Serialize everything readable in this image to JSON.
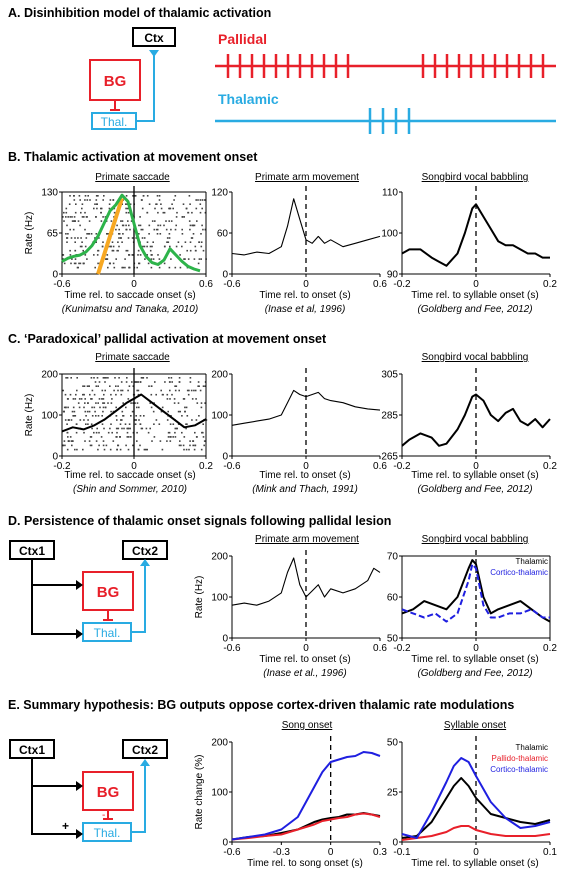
{
  "sections": {
    "A": {
      "heading": "A. Disinhibition model of thalamic activation",
      "pallidal_label": "Pallidal",
      "thalamic_label": "Thalamic"
    },
    "B": {
      "heading": "B. Thalamic activation at movement onset"
    },
    "C": {
      "heading": "C. ‘Paradoxical’ pallidal activation at movement onset"
    },
    "D": {
      "heading": "D. Persistence of thalamic onset signals following pallidal lesion"
    },
    "E": {
      "heading": "E. Summary hypothesis: BG outputs oppose cortex-driven thalamic rate modulations"
    }
  },
  "diagrams": {
    "A": {
      "ctx": "Ctx",
      "bg": "BG",
      "thal": "Thal."
    },
    "D": {
      "ctx1": "Ctx1",
      "ctx2": "Ctx2",
      "bg": "BG",
      "thal": "Thal."
    },
    "E": {
      "ctx1": "Ctx1",
      "ctx2": "Ctx2",
      "bg": "BG",
      "thal": "Thal.",
      "plus": "+",
      "minus": "-"
    }
  },
  "colors": {
    "pallidal": "#e8202a",
    "thalamic": "#29abe2",
    "green": "#2db34a",
    "orange": "#f7a823",
    "blue": "#1f1fe0"
  },
  "panels": {
    "B1": {
      "title": "Primate saccade",
      "xlabel": "Time rel. to saccade onset (s)",
      "cite": "(Kunimatsu and Tanaka, 2010)",
      "ylabel": "Rate (Hz)"
    },
    "B2": {
      "title": "Primate arm movement",
      "xlabel": "Time rel. to onset (s)",
      "cite": "(Inase et al, 1996)"
    },
    "B3": {
      "title": "Songbird vocal babbling",
      "xlabel": "Time rel. to syllable onset (s)",
      "cite": "(Goldberg and Fee, 2012)"
    },
    "C1": {
      "title": "Primate saccade",
      "xlabel": "Time rel. to saccade onset (s)",
      "cite": "(Shin and Sommer, 2010)",
      "ylabel": "Rate (Hz)"
    },
    "C2": {
      "title": "",
      "xlabel": "Time rel. to onset (s)",
      "cite": "(Mink and Thach, 1991)"
    },
    "C3": {
      "title": "Songbird vocal babbling",
      "xlabel": "Time rel. to syllable onset (s)",
      "cite": "(Goldberg and Fee, 2012)"
    },
    "D2": {
      "title": "Primate arm movement",
      "xlabel": "Time rel. to onset (s)",
      "cite": "(Inase et al., 1996)",
      "ylabel": "Rate (Hz)"
    },
    "D3": {
      "title": "Songbird vocal babbling",
      "xlabel": "Time rel. to syllable onset (s)",
      "cite": "(Goldberg and Fee, 2012)"
    },
    "E2": {
      "title": "Song onset",
      "xlabel": "Time rel. to song onset (s)",
      "ylabel": "Rate change (%)"
    },
    "E3": {
      "title": "Syllable onset",
      "xlabel": "Time rel. to syllable onset (s)"
    }
  },
  "chart_data": [
    {
      "id": "B1",
      "type": "line",
      "xlim": [
        -0.6,
        0.6
      ],
      "ylim": [
        0,
        130
      ],
      "xticks": [
        "-0.6",
        "0",
        "0.6"
      ],
      "yticks": [
        "0",
        "65",
        "130"
      ],
      "x": [
        -0.6,
        -0.55,
        -0.5,
        -0.45,
        -0.4,
        -0.35,
        -0.3,
        -0.25,
        -0.2,
        -0.15,
        -0.1,
        -0.05,
        0,
        0.05,
        0.1,
        0.15,
        0.2,
        0.25,
        0.3,
        0.35,
        0.4,
        0.45,
        0.5,
        0.55
      ],
      "series": [
        {
          "color": "green",
          "values": [
            20,
            25,
            28,
            30,
            35,
            45,
            60,
            80,
            100,
            110,
            125,
            115,
            80,
            45,
            28,
            18,
            15,
            22,
            40,
            30,
            20,
            12,
            8,
            5
          ]
        }
      ],
      "annotation": {
        "color": "orange",
        "x": [
          -0.3,
          -0.1
        ],
        "y": [
          0,
          120
        ]
      },
      "raster": true
    },
    {
      "id": "B2",
      "type": "line",
      "xlim": [
        -0.6,
        0.6
      ],
      "ylim": [
        0,
        120
      ],
      "xticks": [
        "-0.6",
        "0",
        "0.6"
      ],
      "yticks": [
        "0",
        "60",
        "120"
      ],
      "x": [
        -0.6,
        -0.5,
        -0.4,
        -0.3,
        -0.2,
        -0.15,
        -0.1,
        -0.05,
        0,
        0.05,
        0.1,
        0.15,
        0.2,
        0.3,
        0.4,
        0.5,
        0.6
      ],
      "series": [
        {
          "color": "black",
          "values": [
            30,
            28,
            32,
            30,
            40,
            70,
            110,
            80,
            50,
            45,
            55,
            45,
            50,
            40,
            45,
            50,
            55
          ]
        }
      ]
    },
    {
      "id": "B3",
      "type": "line",
      "xlim": [
        -0.2,
        0.2
      ],
      "ylim": [
        90,
        110
      ],
      "xticks": [
        "-0.2",
        "0",
        "0.2"
      ],
      "yticks": [
        "90",
        "100",
        "110"
      ],
      "x": [
        -0.2,
        -0.18,
        -0.15,
        -0.12,
        -0.1,
        -0.08,
        -0.05,
        -0.03,
        -0.01,
        0,
        0.02,
        0.04,
        0.06,
        0.08,
        0.1,
        0.12,
        0.14,
        0.16,
        0.18,
        0.2
      ],
      "series": [
        {
          "color": "black",
          "values": [
            95,
            96,
            96,
            94,
            93,
            92,
            95,
            100,
            106,
            107,
            104,
            101,
            98,
            97,
            97,
            96,
            95,
            95,
            94,
            94
          ]
        }
      ]
    },
    {
      "id": "C1",
      "type": "line",
      "xlim": [
        -0.2,
        0.2
      ],
      "ylim": [
        0,
        200
      ],
      "xticks": [
        "-0.2",
        "0",
        "0.2"
      ],
      "yticks": [
        "0",
        "100",
        "200"
      ],
      "x": [
        -0.2,
        -0.17,
        -0.14,
        -0.11,
        -0.08,
        -0.05,
        -0.02,
        0,
        0.02,
        0.05,
        0.08,
        0.11,
        0.14,
        0.17,
        0.2
      ],
      "series": [
        {
          "color": "black",
          "values": [
            60,
            70,
            65,
            75,
            90,
            110,
            130,
            140,
            150,
            130,
            110,
            90,
            70,
            75,
            90
          ]
        }
      ],
      "raster": true
    },
    {
      "id": "C2",
      "type": "line",
      "xlim": [
        -0.6,
        0.6
      ],
      "ylim": [
        0,
        200
      ],
      "xticks": [
        "-0.6",
        "0",
        "0.6"
      ],
      "yticks": [
        "0",
        "100",
        "200"
      ],
      "x": [
        -0.6,
        -0.5,
        -0.4,
        -0.3,
        -0.2,
        -0.15,
        -0.1,
        -0.05,
        0,
        0.05,
        0.1,
        0.15,
        0.2,
        0.3,
        0.4,
        0.5,
        0.6
      ],
      "series": [
        {
          "color": "black",
          "values": [
            75,
            80,
            85,
            90,
            100,
            130,
            160,
            150,
            145,
            150,
            155,
            140,
            135,
            130,
            120,
            115,
            112
          ]
        }
      ]
    },
    {
      "id": "C3",
      "type": "line",
      "xlim": [
        -0.2,
        0.2
      ],
      "ylim": [
        265,
        305
      ],
      "xticks": [
        "-0.2",
        "0",
        "0.2"
      ],
      "yticks": [
        "265",
        "285",
        "305"
      ],
      "x": [
        -0.2,
        -0.18,
        -0.15,
        -0.12,
        -0.1,
        -0.08,
        -0.05,
        -0.03,
        -0.01,
        0,
        0.02,
        0.04,
        0.06,
        0.08,
        0.1,
        0.12,
        0.14,
        0.16,
        0.18,
        0.2
      ],
      "series": [
        {
          "color": "black",
          "values": [
            270,
            273,
            276,
            274,
            270,
            271,
            278,
            285,
            294,
            295,
            292,
            285,
            282,
            286,
            288,
            282,
            280,
            283,
            279,
            283
          ]
        }
      ]
    },
    {
      "id": "D2",
      "type": "line",
      "xlim": [
        -0.6,
        0.6
      ],
      "ylim": [
        0,
        200
      ],
      "xticks": [
        "-0.6",
        "0",
        "0.6"
      ],
      "yticks": [
        "0",
        "100",
        "200"
      ],
      "x": [
        -0.6,
        -0.5,
        -0.4,
        -0.3,
        -0.2,
        -0.15,
        -0.1,
        -0.05,
        0,
        0.05,
        0.1,
        0.15,
        0.2,
        0.3,
        0.4,
        0.5,
        0.55,
        0.6
      ],
      "series": [
        {
          "color": "black",
          "values": [
            80,
            85,
            80,
            90,
            110,
            160,
            195,
            130,
            100,
            115,
            130,
            100,
            120,
            110,
            120,
            140,
            170,
            160
          ]
        }
      ]
    },
    {
      "id": "D3",
      "type": "line",
      "xlim": [
        -0.2,
        0.2
      ],
      "ylim": [
        50,
        70
      ],
      "xticks": [
        "-0.2",
        "0",
        "0.2"
      ],
      "yticks": [
        "50",
        "60",
        "70"
      ],
      "x": [
        -0.2,
        -0.17,
        -0.14,
        -0.11,
        -0.08,
        -0.05,
        -0.02,
        -0.01,
        0,
        0.02,
        0.04,
        0.06,
        0.09,
        0.12,
        0.15,
        0.18,
        0.2
      ],
      "legend": [
        "Thalamic",
        "Cortico-thalamic"
      ],
      "series": [
        {
          "name": "Thalamic",
          "color": "black",
          "values": [
            56,
            57,
            59,
            58,
            57,
            60,
            67,
            69,
            68,
            60,
            56,
            57,
            58,
            59,
            57,
            55,
            54
          ]
        },
        {
          "name": "Cortico-thalamic",
          "color": "blue",
          "dash": true,
          "values": [
            57,
            56,
            55,
            56,
            54,
            56,
            64,
            68,
            67,
            58,
            55,
            55,
            56,
            56,
            57,
            55,
            55
          ]
        }
      ]
    },
    {
      "id": "E2",
      "type": "line",
      "xlim": [
        -0.6,
        0.3
      ],
      "ylim": [
        0,
        200
      ],
      "xticks": [
        "-0.6",
        "-0.3",
        "0",
        "0.3"
      ],
      "yticks": [
        "0",
        "100",
        "200"
      ],
      "x": [
        -0.6,
        -0.5,
        -0.4,
        -0.3,
        -0.2,
        -0.1,
        -0.05,
        0,
        0.05,
        0.1,
        0.15,
        0.2,
        0.25,
        0.3
      ],
      "series": [
        {
          "color": "black",
          "values": [
            5,
            10,
            12,
            18,
            25,
            40,
            45,
            48,
            50,
            55,
            55,
            58,
            55,
            52
          ]
        },
        {
          "color": "red",
          "values": [
            5,
            8,
            12,
            15,
            25,
            35,
            42,
            45,
            48,
            50,
            55,
            57,
            55,
            50
          ]
        },
        {
          "color": "blue",
          "values": [
            5,
            10,
            15,
            25,
            50,
            110,
            140,
            160,
            165,
            170,
            172,
            180,
            178,
            172
          ]
        }
      ]
    },
    {
      "id": "E3",
      "type": "line",
      "xlim": [
        -0.1,
        0.1
      ],
      "ylim": [
        0,
        50
      ],
      "xticks": [
        "-0.1",
        "0",
        "0.1"
      ],
      "yticks": [
        "0",
        "25",
        "50"
      ],
      "x": [
        -0.1,
        -0.08,
        -0.06,
        -0.04,
        -0.03,
        -0.02,
        -0.01,
        0,
        0.02,
        0.04,
        0.06,
        0.08,
        0.1
      ],
      "legend": [
        "Thalamic",
        "Pallido-thalamic",
        "Cortico-thalamic"
      ],
      "series": [
        {
          "name": "Thalamic",
          "color": "black",
          "values": [
            2,
            3,
            10,
            22,
            28,
            32,
            28,
            22,
            14,
            12,
            10,
            9,
            11
          ]
        },
        {
          "name": "Pallido-thalamic",
          "color": "red",
          "values": [
            1,
            2,
            3,
            5,
            7,
            8,
            8,
            6,
            4,
            3,
            3,
            3,
            4
          ]
        },
        {
          "name": "Cortico-thalamic",
          "color": "blue",
          "values": [
            4,
            2,
            15,
            30,
            38,
            42,
            40,
            33,
            20,
            12,
            7,
            8,
            10
          ]
        }
      ]
    }
  ]
}
